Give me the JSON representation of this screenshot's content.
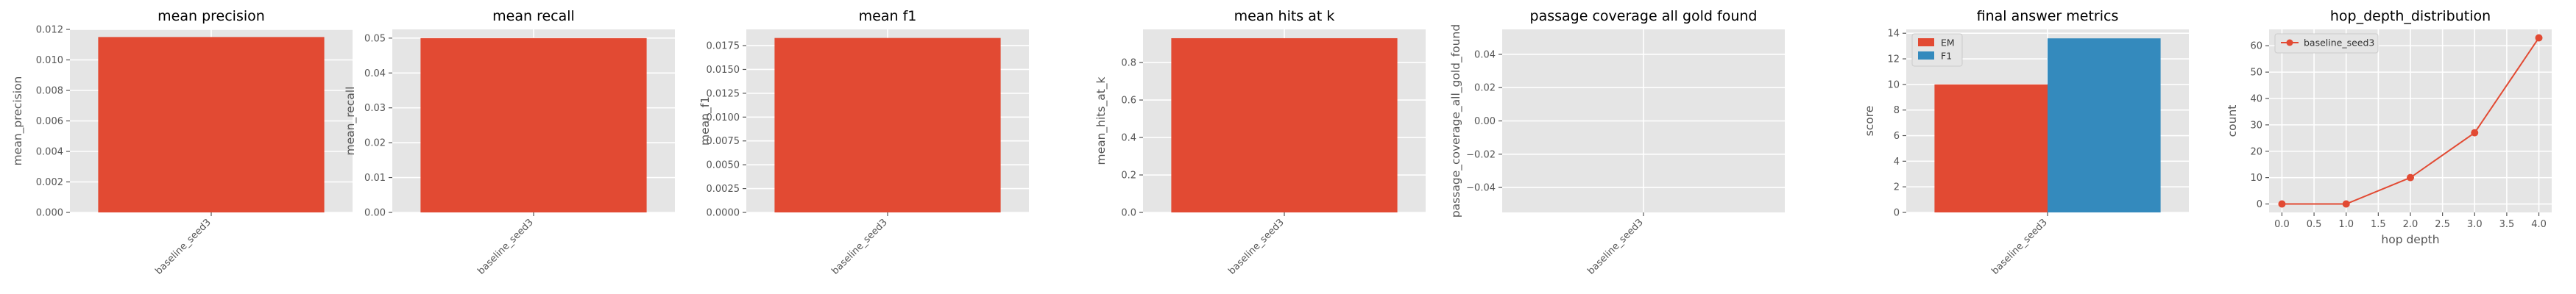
{
  "chart_data": [
    {
      "type": "bar",
      "title": "mean precision",
      "xlabel": "",
      "ylabel": "mean_precision",
      "categories": [
        "baseline_seed3"
      ],
      "values": [
        0.0115
      ],
      "ylim": [
        0,
        0.012
      ],
      "yticks": [
        0.0,
        0.002,
        0.004,
        0.006,
        0.008,
        0.01,
        0.012
      ],
      "ytick_labels": [
        "0.000",
        "0.002",
        "0.004",
        "0.006",
        "0.008",
        "0.010",
        "0.012"
      ],
      "grid": true
    },
    {
      "type": "bar",
      "title": "mean recall",
      "xlabel": "",
      "ylabel": "mean_recall",
      "categories": [
        "baseline_seed3"
      ],
      "values": [
        0.05
      ],
      "ylim": [
        0,
        0.0525
      ],
      "yticks": [
        0.0,
        0.01,
        0.02,
        0.03,
        0.04,
        0.05
      ],
      "ytick_labels": [
        "0.00",
        "0.01",
        "0.02",
        "0.03",
        "0.04",
        "0.05"
      ],
      "grid": true
    },
    {
      "type": "bar",
      "title": "mean f1",
      "xlabel": "",
      "ylabel": "mean_f1",
      "categories": [
        "baseline_seed3"
      ],
      "values": [
        0.0183
      ],
      "ylim": [
        0,
        0.0192
      ],
      "yticks": [
        0.0,
        0.0025,
        0.005,
        0.0075,
        0.01,
        0.0125,
        0.015,
        0.0175
      ],
      "ytick_labels": [
        "0.0000",
        "0.0025",
        "0.0050",
        "0.0075",
        "0.0100",
        "0.0125",
        "0.0150",
        "0.0175"
      ],
      "grid": true
    },
    {
      "type": "bar",
      "title": "mean hits at k",
      "xlabel": "",
      "ylabel": "mean_hits_at_k",
      "categories": [
        "baseline_seed3"
      ],
      "values": [
        0.93
      ],
      "ylim": [
        0,
        0.977
      ],
      "yticks": [
        0.0,
        0.2,
        0.4,
        0.6,
        0.8
      ],
      "ytick_labels": [
        "0.0",
        "0.2",
        "0.4",
        "0.6",
        "0.8"
      ],
      "grid": true
    },
    {
      "type": "bar",
      "title": "passage coverage all gold found",
      "xlabel": "",
      "ylabel": "passage_coverage_all_gold_found",
      "categories": [
        "baseline_seed3"
      ],
      "values": [
        0
      ],
      "ylim": [
        -0.055,
        0.055
      ],
      "yticks": [
        -0.04,
        -0.02,
        0.0,
        0.02,
        0.04
      ],
      "ytick_labels": [
        "−0.04",
        "−0.02",
        "0.00",
        "0.02",
        "0.04"
      ],
      "grid": true
    },
    {
      "type": "bar",
      "title": "final answer metrics",
      "xlabel": "",
      "ylabel": "score",
      "categories": [
        "baseline_seed3"
      ],
      "series": [
        {
          "name": "EM",
          "values": [
            10.0
          ]
        },
        {
          "name": "F1",
          "values": [
            13.6
          ]
        }
      ],
      "ylim": [
        0,
        14.3
      ],
      "yticks": [
        0,
        2,
        4,
        6,
        8,
        10,
        12,
        14
      ],
      "ytick_labels": [
        "0",
        "2",
        "4",
        "6",
        "8",
        "10",
        "12",
        "14"
      ],
      "legend": "top-left",
      "grid": true
    },
    {
      "type": "line",
      "title": "hop_depth_distribution",
      "xlabel": "hop depth",
      "ylabel": "count",
      "series": [
        {
          "name": "baseline_seed3",
          "x": [
            0.0,
            1.0,
            2.0,
            3.0,
            4.0
          ],
          "y": [
            0,
            0,
            10,
            27,
            63
          ]
        }
      ],
      "xlim": [
        -0.2,
        4.2
      ],
      "ylim": [
        -3.2,
        66.2
      ],
      "xticks": [
        0.0,
        0.5,
        1.0,
        1.5,
        2.0,
        2.5,
        3.0,
        3.5,
        4.0
      ],
      "xtick_labels": [
        "0.0",
        "0.5",
        "1.0",
        "1.5",
        "2.0",
        "2.5",
        "3.0",
        "3.5",
        "4.0"
      ],
      "yticks": [
        0,
        10,
        20,
        30,
        40,
        50,
        60
      ],
      "ytick_labels": [
        "0",
        "10",
        "20",
        "30",
        "40",
        "50",
        "60"
      ],
      "legend": "top-left",
      "grid": true
    }
  ],
  "colors": {
    "series_red": "#E24A33",
    "series_blue": "#348ABD",
    "axes_bg": "#E5E5E5",
    "grid": "#FFFFFF",
    "tick_text": "#555555",
    "label_text": "#555555",
    "title_text": "#000000"
  }
}
